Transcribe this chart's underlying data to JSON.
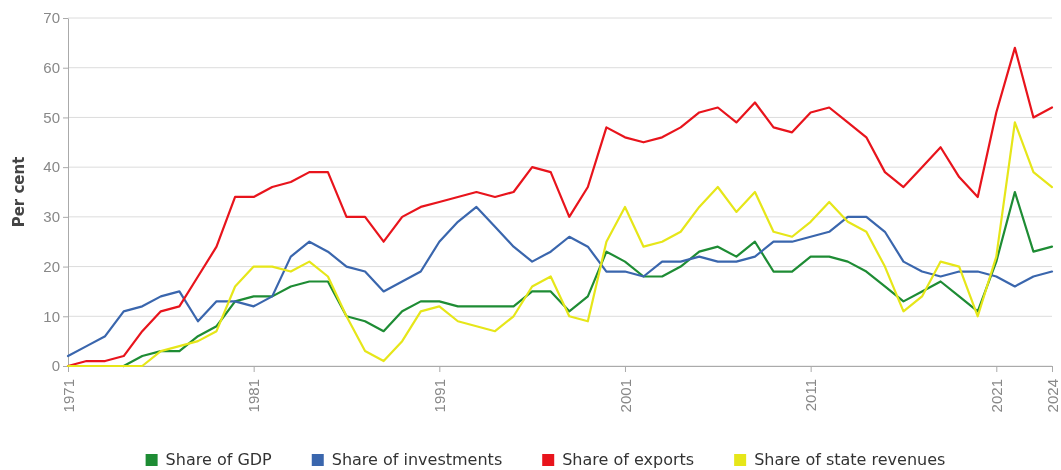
{
  "chart_data": {
    "type": "line",
    "ylabel": "Per cent",
    "x": [
      1971,
      1972,
      1973,
      1974,
      1975,
      1976,
      1977,
      1978,
      1979,
      1980,
      1981,
      1982,
      1983,
      1984,
      1985,
      1986,
      1987,
      1988,
      1989,
      1990,
      1991,
      1992,
      1993,
      1994,
      1995,
      1996,
      1997,
      1998,
      1999,
      2000,
      2001,
      2002,
      2003,
      2004,
      2005,
      2006,
      2007,
      2008,
      2009,
      2010,
      2011,
      2012,
      2013,
      2014,
      2015,
      2016,
      2017,
      2018,
      2019,
      2020,
      2021,
      2022,
      2023,
      2024
    ],
    "xlim": [
      1971,
      2024
    ],
    "xticks": [
      1971,
      1981,
      1991,
      2001,
      2011,
      2021,
      2024
    ],
    "ylim": [
      0,
      70
    ],
    "yticks": [
      0,
      10,
      20,
      30,
      40,
      50,
      60,
      70
    ],
    "grid": "y",
    "legend": "bottom",
    "marker": "none",
    "line_style": "solid",
    "series": [
      {
        "name": "Share of GDP",
        "color": "#1e8c34",
        "values": [
          null,
          null,
          null,
          0,
          2,
          3,
          3,
          6,
          8,
          13,
          14,
          14,
          16,
          17,
          17,
          10,
          9,
          7,
          11,
          13,
          13,
          12,
          12,
          12,
          12,
          15,
          15,
          11,
          14,
          23,
          21,
          18,
          18,
          20,
          23,
          24,
          22,
          25,
          19,
          19,
          22,
          22,
          21,
          19,
          16,
          13,
          15,
          17,
          14,
          11,
          21,
          35,
          23,
          24
        ]
      },
      {
        "name": "Share of investments",
        "color": "#3a66ad",
        "values": [
          2,
          4,
          6,
          11,
          12,
          14,
          15,
          9,
          13,
          13,
          12,
          14,
          22,
          25,
          23,
          20,
          19,
          15,
          17,
          19,
          25,
          29,
          32,
          28,
          24,
          21,
          23,
          26,
          24,
          19,
          19,
          18,
          21,
          21,
          22,
          21,
          21,
          22,
          25,
          25,
          26,
          27,
          30,
          30,
          27,
          21,
          19,
          18,
          19,
          19,
          18,
          16,
          18,
          19
        ]
      },
      {
        "name": "Share of exports",
        "color": "#e8141c",
        "values": [
          0,
          1,
          1,
          2,
          7,
          11,
          12,
          18,
          24,
          34,
          34,
          36,
          37,
          39,
          39,
          30,
          30,
          25,
          30,
          32,
          33,
          34,
          35,
          34,
          35,
          40,
          39,
          30,
          36,
          48,
          46,
          45,
          46,
          48,
          51,
          52,
          49,
          53,
          48,
          47,
          51,
          52,
          49,
          46,
          39,
          36,
          40,
          44,
          38,
          34,
          51,
          64,
          50,
          52
        ]
      },
      {
        "name": "Share of state revenues",
        "color": "#e6e619",
        "values": [
          0,
          0,
          0,
          0,
          0,
          3,
          4,
          5,
          7,
          16,
          20,
          20,
          19,
          21,
          18,
          10,
          3,
          1,
          5,
          11,
          12,
          9,
          8,
          7,
          10,
          16,
          18,
          10,
          9,
          25,
          32,
          24,
          25,
          27,
          32,
          36,
          31,
          35,
          27,
          26,
          29,
          33,
          29,
          27,
          20,
          11,
          14,
          21,
          20,
          10,
          22,
          49,
          39,
          36
        ]
      }
    ]
  }
}
